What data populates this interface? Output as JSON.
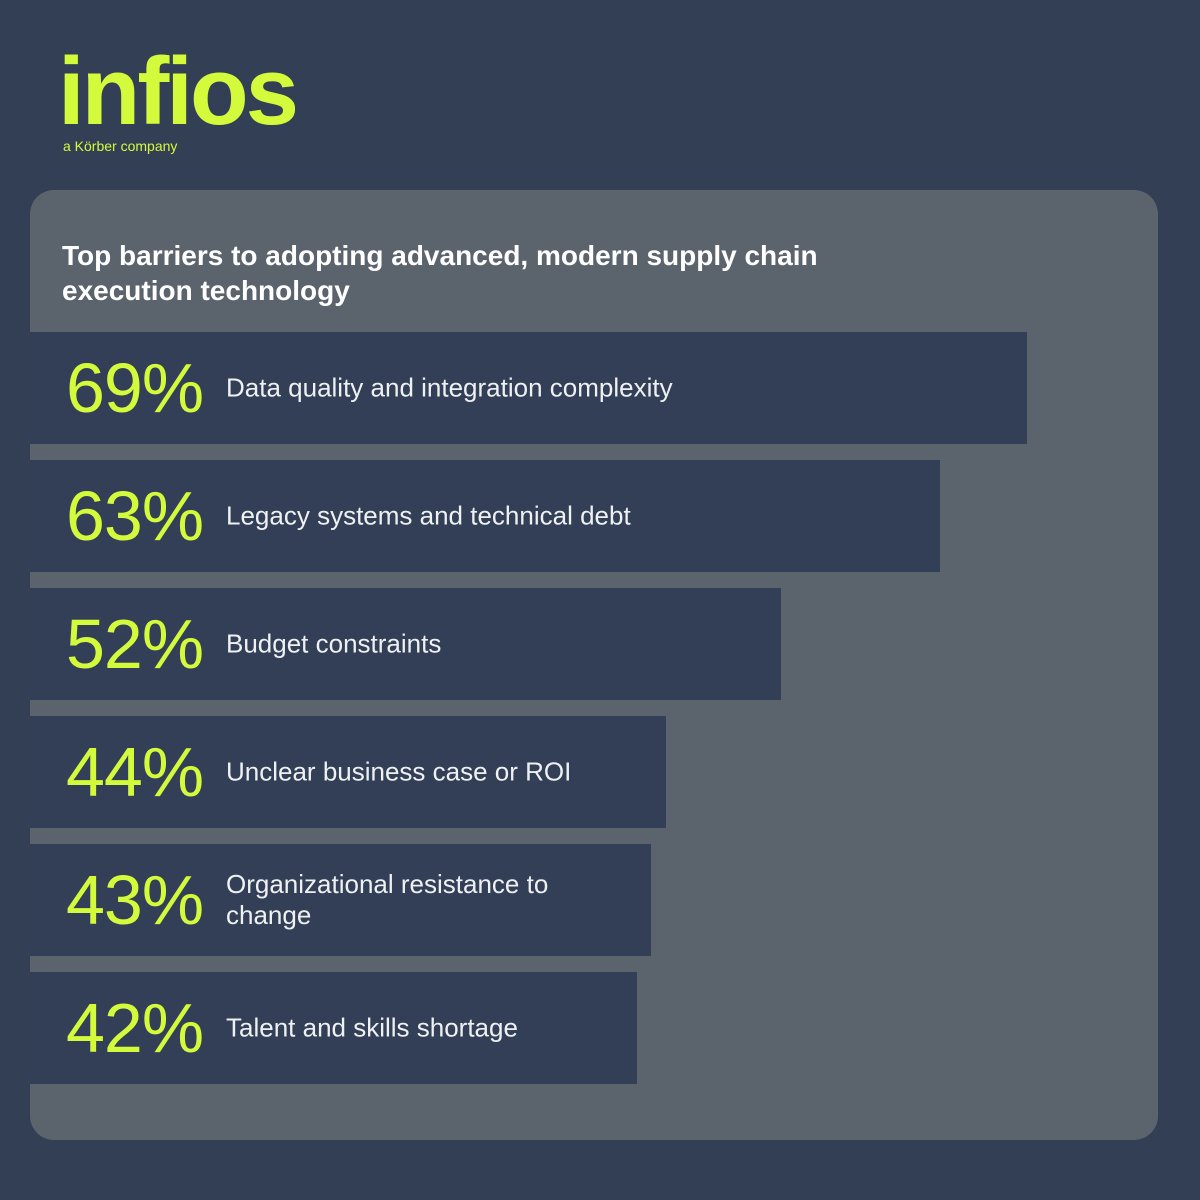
{
  "brand": {
    "name": "infios",
    "tagline": "a Körber company"
  },
  "chart_data": {
    "type": "bar",
    "orientation": "horizontal",
    "title": "Top barriers to adopting advanced, modern supply chain execution technology",
    "categories": [
      "Data quality and integration complexity",
      "Legacy systems and technical debt",
      "Budget constraints",
      "Unclear business case or ROI",
      "Organizational resistance to change",
      "Talent and skills shortage"
    ],
    "values": [
      69,
      63,
      52,
      44,
      43,
      42
    ],
    "value_labels": [
      "69%",
      "63%",
      "52%",
      "44%",
      "43%",
      "42%"
    ],
    "color": "#323f56",
    "label_color": "#d4fa3c"
  }
}
